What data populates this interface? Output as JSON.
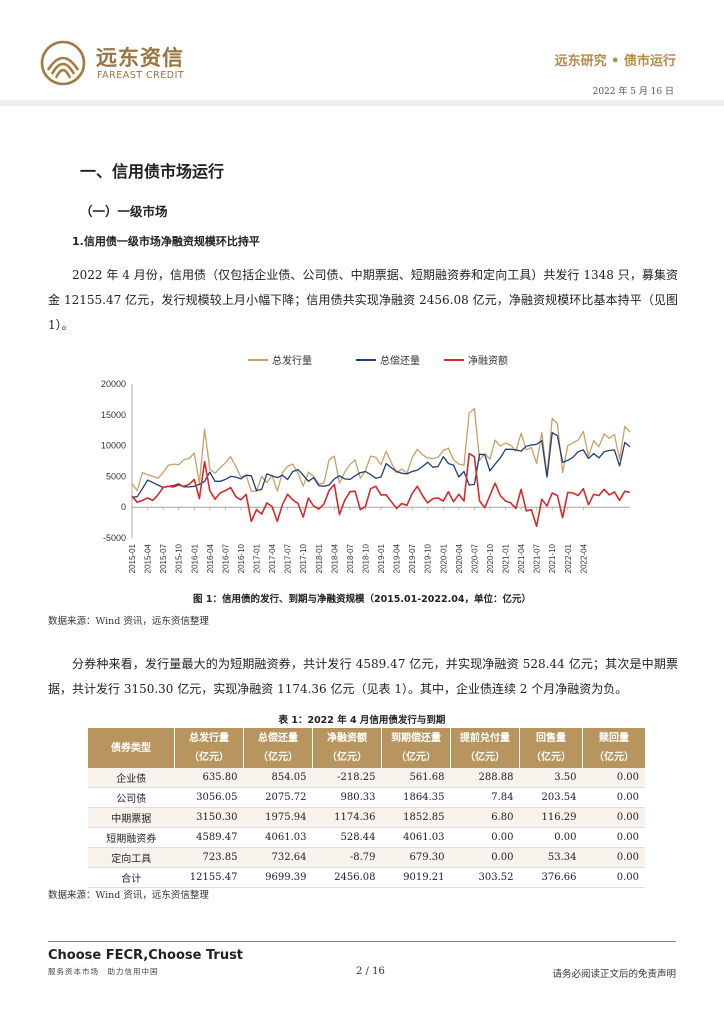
{
  "header": {
    "logo_cn": "远东资信",
    "logo_en": "FAREAST CREDIT",
    "section": "远东研究 • 债市运行",
    "date": "2022 年 5 月 16 日"
  },
  "headings": {
    "h1": "一、信用债市场运行",
    "h2": "（一）一级市场",
    "h3": "1.信用债一级市场净融资规模环比持平"
  },
  "paragraphs": {
    "p1": "2022 年 4 月份，信用债（仅包括企业债、公司债、中期票据、短期融资券和定向工具）共发行 1348 只，募集资金 12155.47 亿元，发行规模较上月小幅下降；信用债共实现净融资 2456.08 亿元，净融资规模环比基本持平（见图 1）。",
    "p2": "分券种来看，发行量最大的为短期融资券，共计发行 4589.47 亿元，并实现净融资 528.44 亿元；其次是中期票据，共计发行 3150.30 亿元，实现净融资 1174.36 亿元（见表 1）。其中，企业债连续 2 个月净融资为负。"
  },
  "figure": {
    "caption": "图 1：信用债的发行、到期与净融资规模（2015.01-2022.04，单位：亿元）",
    "source": "数据来源：Wind 资讯，远东资信整理"
  },
  "chart_data": {
    "type": "line",
    "title": "",
    "xlabel": "",
    "ylabel": "",
    "ylim": [
      -5000,
      20000
    ],
    "yticks": [
      20000,
      15000,
      10000,
      5000,
      0,
      -5000
    ],
    "legend_position": "top",
    "x_tick_labels": [
      "2015-01",
      "2015-04",
      "2015-07",
      "2015-10",
      "2016-01",
      "2016-04",
      "2016-07",
      "2016-10",
      "2017-01",
      "2017-04",
      "2017-07",
      "2017-10",
      "2018-01",
      "2018-04",
      "2018-07",
      "2018-10",
      "2019-01",
      "2019-04",
      "2019-07",
      "2019-10",
      "2020-01",
      "2020-04",
      "2020-07",
      "2020-10",
      "2021-01",
      "2021-04",
      "2021-07",
      "2021-10",
      "2022-01",
      "2022-04"
    ],
    "colors": {
      "issuance": "#c9a063",
      "repayment": "#1f3d7a",
      "net": "#d42a2a"
    },
    "series": [
      {
        "name": "总发行量",
        "color": "#c9a063",
        "values": [
          3800,
          2700,
          5600,
          5300,
          5000,
          4700,
          5600,
          6800,
          7000,
          6900,
          7700,
          7900,
          8800,
          3900,
          12700,
          6200,
          5500,
          6400,
          7200,
          8200,
          6600,
          4900,
          5200,
          2600,
          2600,
          5000,
          4000,
          5200,
          2600,
          5600,
          6600,
          7000,
          5500,
          3400,
          5700,
          5000,
          3800,
          3900,
          7700,
          8300,
          3900,
          5700,
          6900,
          7700,
          4700,
          5900,
          8300,
          8100,
          6900,
          9100,
          7200,
          5600,
          6200,
          5500,
          8000,
          9400,
          8500,
          8000,
          7900,
          8100,
          9200,
          9600,
          7700,
          7000,
          6800,
          15300,
          16000,
          7600,
          8700,
          7800,
          10900,
          9900,
          10400,
          10100,
          9100,
          12000,
          9300,
          9700,
          7100,
          12100,
          5100,
          14400,
          13600,
          5600,
          10000,
          10400,
          10900,
          12300,
          8300,
          10800,
          9800,
          11900,
          11200,
          11800,
          7800,
          13100,
          12200
        ]
      },
      {
        "name": "总偿还量",
        "color": "#1f3d7a",
        "values": [
          1600,
          1700,
          3000,
          4400,
          4000,
          3600,
          3200,
          3400,
          3500,
          3800,
          3300,
          3300,
          3400,
          3700,
          4200,
          5700,
          4200,
          4200,
          4500,
          5000,
          4900,
          4600,
          5200,
          5100,
          2700,
          2900,
          5400,
          5100,
          4800,
          5200,
          4500,
          5800,
          6100,
          5200,
          4200,
          4800,
          3500,
          3400,
          3600,
          4600,
          5100,
          4600,
          4500,
          5100,
          5600,
          5800,
          5300,
          4700,
          4900,
          7100,
          6400,
          5800,
          5500,
          5400,
          5800,
          6000,
          6600,
          7300,
          6500,
          6600,
          8200,
          7100,
          6800,
          4900,
          5800,
          3600,
          3700,
          8600,
          8500,
          5900,
          7000,
          8000,
          9400,
          9400,
          9300,
          9100,
          9900,
          10100,
          10200,
          10800,
          4900,
          12100,
          11600,
          7300,
          7600,
          8100,
          9000,
          9300,
          7900,
          8700,
          8000,
          9000,
          9200,
          9300,
          6700,
          10500,
          9800
        ]
      },
      {
        "name": "净融资额",
        "color": "#d42a2a",
        "values": [
          1800,
          800,
          1100,
          1500,
          1100,
          2000,
          3200,
          3400,
          3300,
          3600,
          3400,
          3700,
          4500,
          1400,
          7400,
          2700,
          1300,
          2300,
          2700,
          3200,
          1700,
          1200,
          2100,
          -2300,
          -400,
          -1100,
          700,
          100,
          -2300,
          400,
          2100,
          1200,
          600,
          -1600,
          1500,
          200,
          -300,
          500,
          2700,
          3700,
          -1200,
          1100,
          2500,
          2600,
          -400,
          100,
          3000,
          3400,
          2000,
          2000,
          900,
          -200,
          600,
          300,
          2200,
          3400,
          1900,
          700,
          1400,
          1500,
          1000,
          2500,
          900,
          2100,
          1000,
          8700,
          8200,
          1000,
          -100,
          1900,
          3900,
          1900,
          1000,
          700,
          -200,
          2900,
          -600,
          -400,
          -3100,
          1300,
          200,
          2300,
          1900,
          -1700,
          2400,
          2300,
          1900,
          3000,
          400,
          2100,
          1900,
          2900,
          2000,
          2500,
          1100,
          2600,
          2400
        ]
      }
    ]
  },
  "table": {
    "caption": "表 1：2022 年 4 月信用债发行与到期",
    "headers": [
      {
        "line1": "债券类型",
        "line2": ""
      },
      {
        "line1": "总发行量",
        "line2": "（亿元）"
      },
      {
        "line1": "总偿还量",
        "line2": "（亿元）"
      },
      {
        "line1": "净融资额",
        "line2": "（亿元）"
      },
      {
        "line1": "到期偿还量",
        "line2": "（亿元）"
      },
      {
        "line1": "提前兑付量",
        "line2": "（亿元）"
      },
      {
        "line1": "回售量",
        "line2": "（亿元）"
      },
      {
        "line1": "赎回量",
        "line2": "（亿元）"
      }
    ],
    "rows": [
      {
        "type": "企业债",
        "cells": [
          "635.80",
          "854.05",
          "-218.25",
          "561.68",
          "288.88",
          "3.50",
          "0.00"
        ]
      },
      {
        "type": "公司债",
        "cells": [
          "3056.05",
          "2075.72",
          "980.33",
          "1864.35",
          "7.84",
          "203.54",
          "0.00"
        ]
      },
      {
        "type": "中期票据",
        "cells": [
          "3150.30",
          "1975.94",
          "1174.36",
          "1852.85",
          "6.80",
          "116.29",
          "0.00"
        ]
      },
      {
        "type": "短期融资券",
        "cells": [
          "4589.47",
          "4061.03",
          "528.44",
          "4061.03",
          "0.00",
          "0.00",
          "0.00"
        ]
      },
      {
        "type": "定向工具",
        "cells": [
          "723.85",
          "732.64",
          "-8.79",
          "679.30",
          "0.00",
          "53.34",
          "0.00"
        ]
      },
      {
        "type": "合计",
        "cells": [
          "12155.47",
          "9699.39",
          "2456.08",
          "9019.21",
          "303.52",
          "376.66",
          "0.00"
        ]
      }
    ],
    "source": "数据来源：Wind 资讯，远东资信整理"
  },
  "footer": {
    "slogan": "Choose FECR,Choose Trust",
    "slogan_cn": "服务资本市场　助力信用中国",
    "page": "2 / 16",
    "disclaimer": "请务必阅读正文后的免责声明"
  }
}
